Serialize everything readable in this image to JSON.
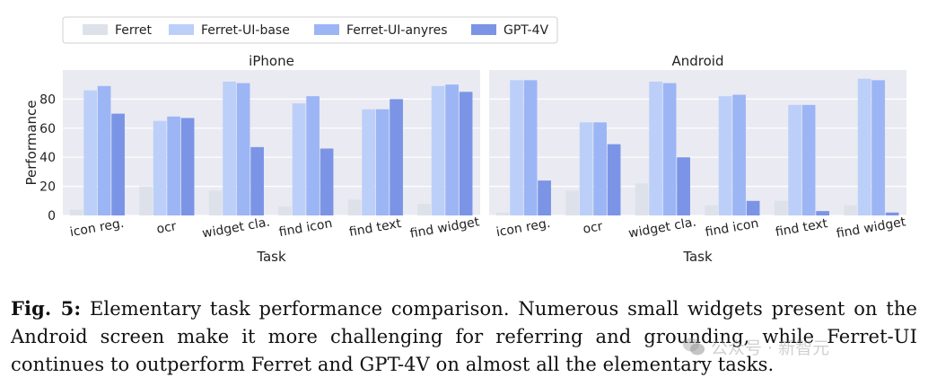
{
  "chart_data": {
    "type": "bar",
    "legend": {
      "placement": "top",
      "entries": [
        {
          "name": "Ferret",
          "color": "#dde2ea"
        },
        {
          "name": "Ferret-UI-base",
          "color": "#bccff8"
        },
        {
          "name": "Ferret-UI-anyres",
          "color": "#9cb5f5"
        },
        {
          "name": "GPT-4V",
          "color": "#7b94e6"
        }
      ]
    },
    "ylabel": "Performance",
    "xlabel": "Task",
    "ylim": [
      0,
      100
    ],
    "yticks": [
      "0",
      "20",
      "40",
      "60",
      "80"
    ],
    "grid": true,
    "categories": [
      "icon reg.",
      "ocr",
      "widget cla.",
      "find icon",
      "find text",
      "find widget"
    ],
    "panels": [
      {
        "title": "iPhone",
        "series": [
          {
            "name": "Ferret",
            "values": [
              4,
              20,
              17,
              6,
              11,
              8
            ]
          },
          {
            "name": "Ferret-UI-base",
            "values": [
              86,
              65,
              92,
              77,
              73,
              89
            ]
          },
          {
            "name": "Ferret-UI-anyres",
            "values": [
              89,
              68,
              91,
              82,
              73,
              90
            ]
          },
          {
            "name": "GPT-4V",
            "values": [
              70,
              67,
              47,
              46,
              80,
              85
            ]
          }
        ]
      },
      {
        "title": "Android",
        "series": [
          {
            "name": "Ferret",
            "values": [
              2,
              17,
              22,
              7,
              10,
              7
            ]
          },
          {
            "name": "Ferret-UI-base",
            "values": [
              93,
              64,
              92,
              82,
              76,
              94
            ]
          },
          {
            "name": "Ferret-UI-anyres",
            "values": [
              93,
              64,
              91,
              83,
              76,
              93
            ]
          },
          {
            "name": "GPT-4V",
            "values": [
              24,
              49,
              40,
              10,
              3,
              2
            ]
          }
        ]
      }
    ]
  },
  "caption": {
    "label": "Fig. 5:",
    "text": "Elementary task performance comparison. Numerous small widgets present on the Android screen make it more challenging for referring and grounding, while Ferret-UI continues to outperform Ferret and GPT-4V on almost all the elementary tasks."
  },
  "watermark": {
    "text": "公众号 · 新智元"
  }
}
